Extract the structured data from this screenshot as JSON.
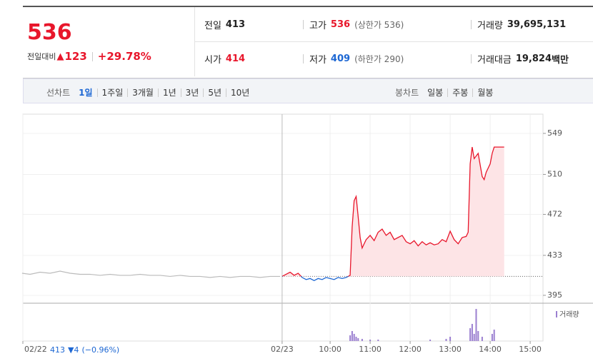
{
  "header": {
    "price": "536",
    "change_label": "전일대비",
    "change": "123",
    "change_pct": "+29.78%",
    "stats": [
      {
        "label": "전일",
        "value": "413",
        "color": "#222"
      },
      {
        "label": "고가",
        "value": "536",
        "note": "(상한가 536)",
        "color": "#e8162b"
      },
      {
        "label": "거래량",
        "value": "39,695,131",
        "color": "#222"
      },
      {
        "label": "시가",
        "value": "414",
        "color": "#e8162b"
      },
      {
        "label": "저가",
        "value": "409",
        "note": "(하한가 290)",
        "color": "#1d67d3"
      },
      {
        "label": "거래대금",
        "value": "19,824",
        "unit": "백만",
        "color": "#222"
      }
    ]
  },
  "tabs": {
    "line_label": "선차트",
    "line_tabs": [
      "1일",
      "1주일",
      "3개월",
      "1년",
      "3년",
      "5년",
      "10년"
    ],
    "active": 0,
    "candle_label": "봉차트",
    "candle_tabs": [
      "일봉",
      "주봉",
      "월봉"
    ]
  },
  "chart_data": {
    "type": "line",
    "ylim": [
      387.5,
      567.3
    ],
    "yticks": [
      549,
      510,
      472,
      433,
      395
    ],
    "xlim": [
      2.32,
      15.32
    ],
    "xticks": [
      {
        "value": 2.32,
        "label": "02/22"
      },
      {
        "value": 8.8,
        "label": "02/23"
      },
      {
        "value": 10,
        "label": "10:00"
      },
      {
        "value": 11,
        "label": "11:00"
      },
      {
        "value": 12,
        "label": "12:00"
      },
      {
        "value": 13,
        "label": "13:00"
      },
      {
        "value": 14,
        "label": "14:00"
      },
      {
        "value": 15,
        "label": "15:00"
      }
    ],
    "baseline": 413,
    "up_color": "#e8162b",
    "down_color": "#1d67d3",
    "fill_color": "#fde4e6",
    "series": [
      {
        "color": "#bbbbbb",
        "x": [
          2.3,
          2.5,
          2.75,
          3,
          3.25,
          3.5,
          3.75,
          4,
          4.25,
          4.5,
          4.75,
          5,
          5.25,
          5.5,
          5.75,
          6,
          6.25,
          6.5,
          6.75,
          7,
          7.25,
          7.5,
          7.75,
          8,
          8.25,
          8.5,
          8.75
        ],
        "values": [
          416,
          415,
          417,
          416,
          418,
          416,
          415,
          415,
          414,
          415,
          414,
          414,
          415,
          414,
          414,
          413,
          414,
          413,
          413,
          412,
          413,
          412,
          413,
          413,
          412,
          413,
          413
        ]
      },
      {
        "x": [
          8.8,
          8.9,
          9,
          9.1,
          9.2,
          9.3,
          9.4,
          9.5,
          9.6,
          9.7,
          9.8,
          9.9,
          10,
          10.1,
          10.2,
          10.3,
          10.4,
          10.5,
          10.55,
          10.6,
          10.65,
          10.7,
          10.75,
          10.8,
          10.9,
          11,
          11.1,
          11.2,
          11.3,
          11.4,
          11.5,
          11.6,
          11.7,
          11.8,
          11.9,
          12,
          12.1,
          12.2,
          12.3,
          12.4,
          12.5,
          12.6,
          12.7,
          12.8,
          12.9,
          13,
          13.1,
          13.2,
          13.3,
          13.4,
          13.45,
          13.5,
          13.55,
          13.6,
          13.7,
          13.8,
          13.85,
          13.9,
          14,
          14.05,
          14.1,
          14.2,
          14.35
        ],
        "values": [
          413,
          415,
          417,
          414,
          416,
          412,
          410,
          411,
          409,
          411,
          410,
          412,
          411,
          410,
          412,
          411,
          412,
          414,
          460,
          485,
          489,
          470,
          450,
          440,
          448,
          452,
          447,
          455,
          458,
          452,
          455,
          448,
          450,
          452,
          446,
          444,
          447,
          442,
          446,
          443,
          445,
          443,
          444,
          448,
          446,
          456,
          448,
          444,
          450,
          451,
          455,
          520,
          536,
          525,
          530,
          508,
          505,
          512,
          520,
          530,
          536,
          536,
          536
        ]
      }
    ],
    "volume": {
      "label": "거래량",
      "color": "#9b7fd0",
      "ylim": [
        0,
        50
      ],
      "x": [
        10.5,
        10.55,
        10.6,
        10.65,
        10.7,
        10.8,
        11,
        11.2,
        12.5,
        12.9,
        13,
        13.5,
        13.55,
        13.6,
        13.65,
        13.7,
        13.8,
        14.05,
        14.1
      ],
      "values": [
        8,
        14,
        10,
        6,
        4,
        3,
        2,
        2,
        2,
        3,
        6,
        18,
        24,
        10,
        45,
        14,
        6,
        10,
        16
      ]
    },
    "prev_close": "413",
    "prev_change": "▼4",
    "prev_change_pct": "(−0.96%)"
  }
}
